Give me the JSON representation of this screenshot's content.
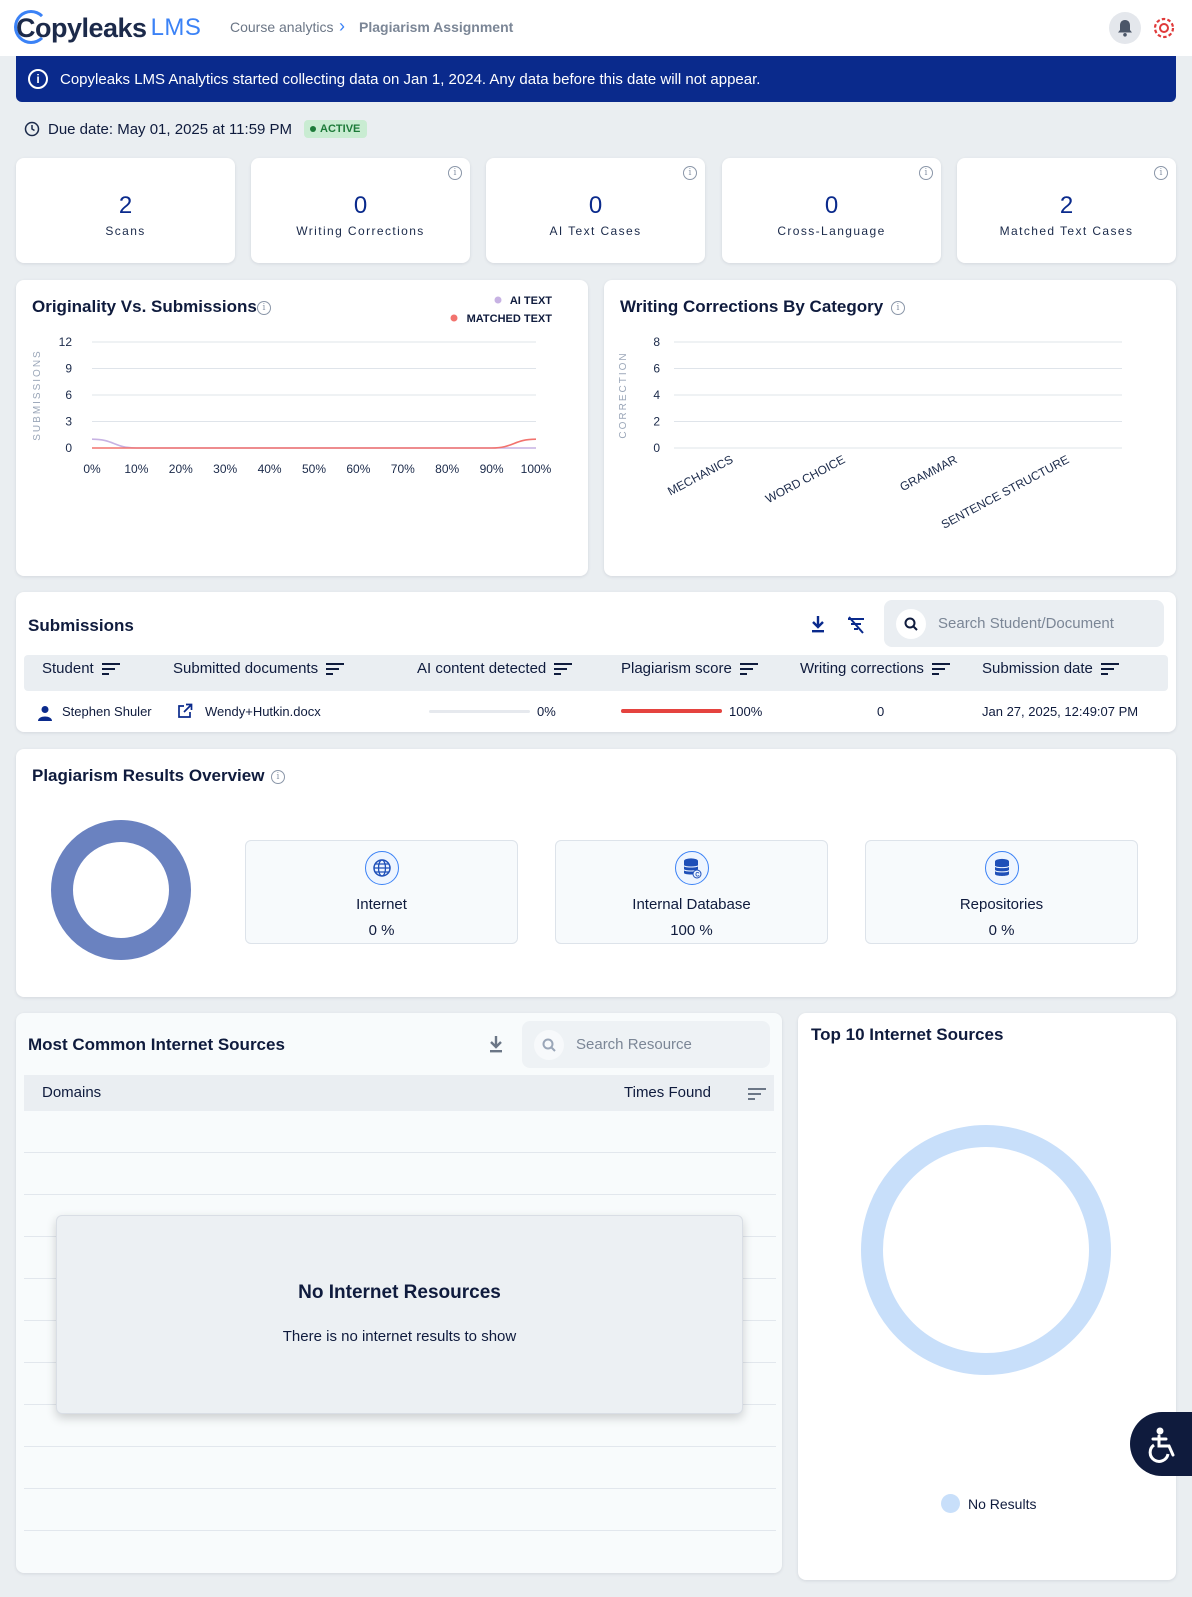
{
  "header": {
    "logo_main": "Copyleaks",
    "logo_lms": "LMS",
    "breadcrumb": [
      "Course analytics",
      "Plagiarism Assignment"
    ]
  },
  "banner": {
    "text": "Copyleaks LMS Analytics started collecting data on Jan 1, 2024. Any data before this date will not appear."
  },
  "due": {
    "text": "Due date: May 01, 2025 at 11:59 PM",
    "status": "ACTIVE"
  },
  "stats": [
    {
      "value": "2",
      "label": "Scans"
    },
    {
      "value": "0",
      "label": "Writing Corrections"
    },
    {
      "value": "0",
      "label": "AI Text Cases"
    },
    {
      "value": "0",
      "label": "Cross-Language"
    },
    {
      "value": "2",
      "label": "Matched Text Cases"
    }
  ],
  "originality_chart": {
    "title": "Originality Vs. Submissions",
    "legend": [
      "AI TEXT",
      "MATCHED TEXT"
    ],
    "colors": {
      "ai": "#c7b2e3",
      "matched": "#f2736e"
    }
  },
  "corrections_chart": {
    "title": "Writing Corrections By Category"
  },
  "chart_data": [
    {
      "type": "line",
      "title": "Originality Vs. Submissions",
      "xlabel": "",
      "ylabel": "SUBMISSIONS",
      "x": [
        "0%",
        "10%",
        "20%",
        "30%",
        "40%",
        "50%",
        "60%",
        "70%",
        "80%",
        "90%",
        "100%"
      ],
      "ylim": [
        0,
        12
      ],
      "yticks": [
        0,
        3,
        6,
        9,
        12
      ],
      "series": [
        {
          "name": "AI TEXT",
          "values": [
            1,
            0,
            0,
            0,
            0,
            0,
            0,
            0,
            0,
            0,
            0
          ]
        },
        {
          "name": "MATCHED TEXT",
          "values": [
            0,
            0,
            0,
            0,
            0,
            0,
            0,
            0,
            0,
            0,
            1
          ]
        }
      ],
      "legend": "top-right",
      "grid": true
    },
    {
      "type": "bar",
      "title": "Writing Corrections By Category",
      "xlabel": "",
      "ylabel": "CORRECTION",
      "categories": [
        "MECHANICS",
        "WORD CHOICE",
        "GRAMMAR",
        "SENTENCE STRUCTURE"
      ],
      "values": [
        0,
        0,
        0,
        0
      ],
      "ylim": [
        0,
        8
      ],
      "yticks": [
        0,
        2,
        4,
        6,
        8
      ],
      "grid": true
    }
  ],
  "submissions": {
    "title": "Submissions",
    "search_placeholder": "Search Student/Document",
    "columns": [
      "Student",
      "Submitted documents",
      "AI content detected",
      "Plagiarism score",
      "Writing corrections",
      "Submission date"
    ],
    "rows": [
      {
        "student": "Stephen Shuler",
        "document": "Wendy+Hutkin.docx",
        "ai": "0%",
        "ai_fraction": 0,
        "plagiarism": "100%",
        "plagiarism_fraction": 1,
        "corrections": "0",
        "date": "Jan 27, 2025, 12:49:07 PM"
      }
    ]
  },
  "overview": {
    "title": "Plagiarism Results Overview",
    "sources": [
      {
        "name": "Internet",
        "pct": "0 %",
        "icon": "globe-icon"
      },
      {
        "name": "Internal Database",
        "pct": "100 %",
        "icon": "database-icon"
      },
      {
        "name": "Repositories",
        "pct": "0 %",
        "icon": "repository-icon"
      }
    ],
    "colors": {
      "donut": "#6a82c0"
    }
  },
  "internet_sources": {
    "title": "Most Common Internet Sources",
    "search_placeholder": "Search Resource",
    "columns": [
      "Domains",
      "Times Found"
    ],
    "empty_title": "No Internet Resources",
    "empty_text": "There is no internet results to show"
  },
  "top10": {
    "title": "Top 10 Internet Sources",
    "legend": "No Results",
    "colors": {
      "donut": "#c8dffa"
    }
  }
}
